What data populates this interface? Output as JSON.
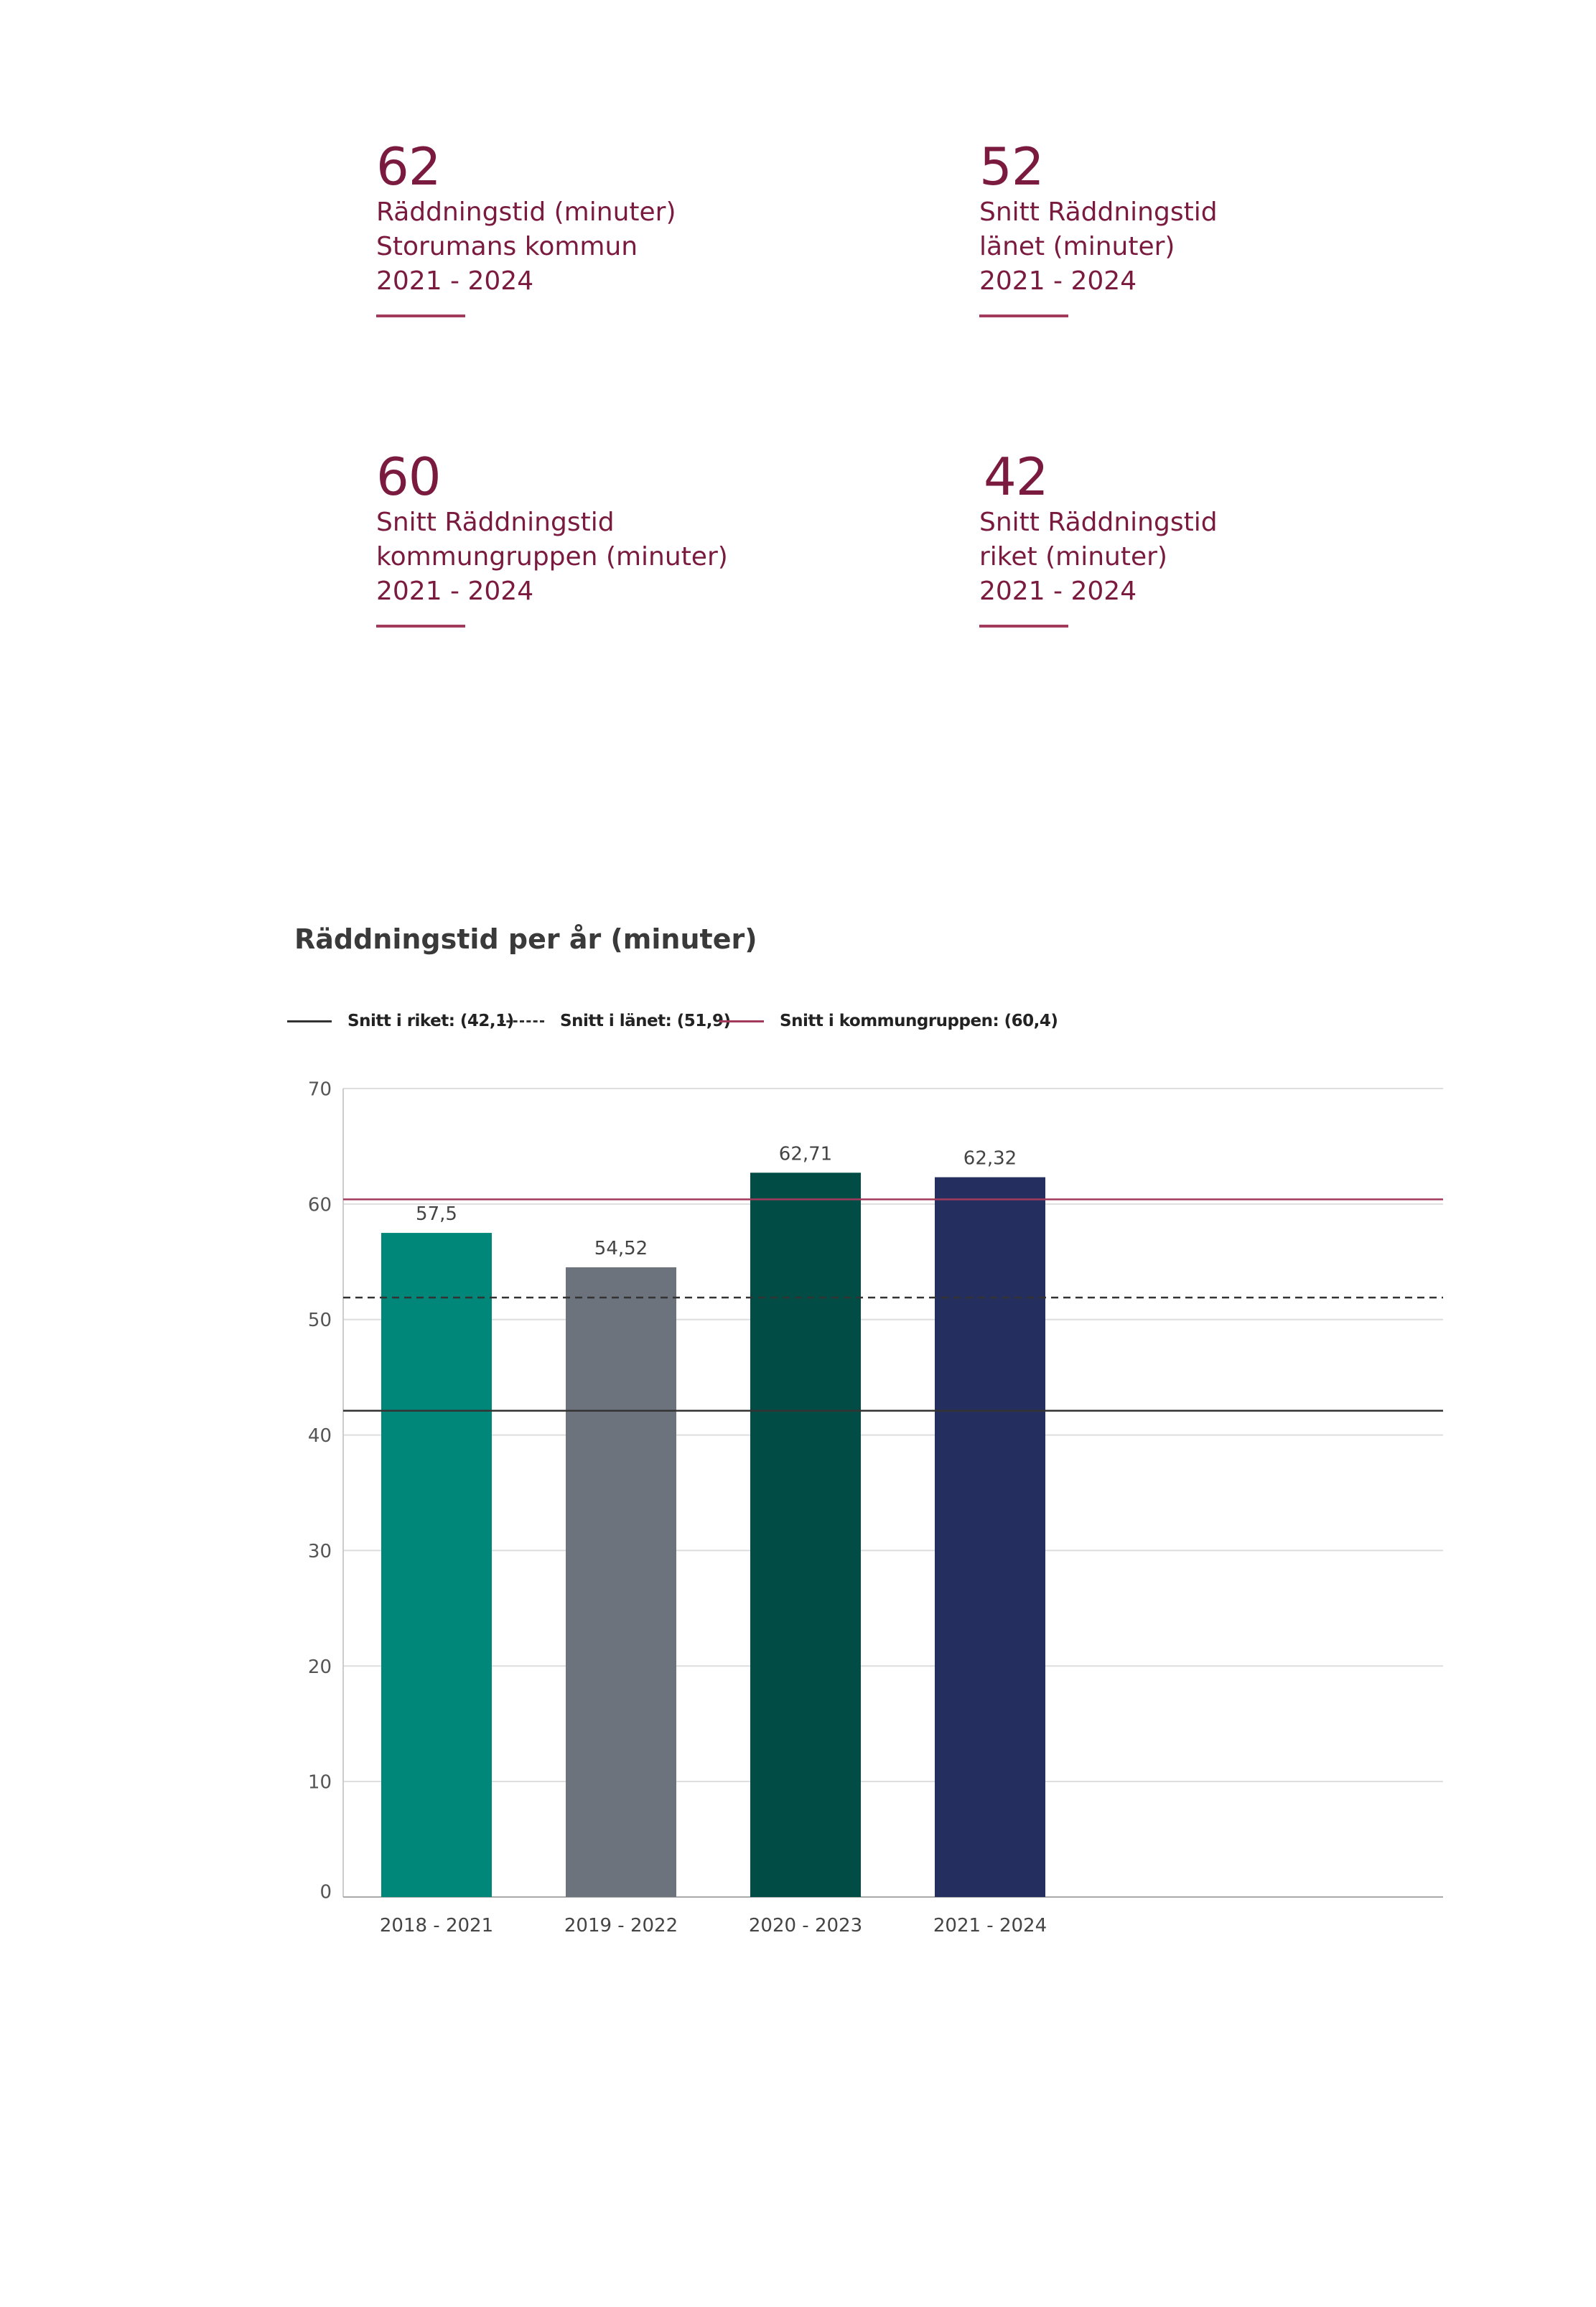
{
  "stats": [
    {
      "value": "62",
      "lines": [
        "Räddningstid (minuter)",
        "Storumans kommun",
        "2021 - 2024"
      ]
    },
    {
      "value": "52",
      "lines": [
        "Snitt Räddningstid",
        "länet (minuter)",
        "2021 - 2024"
      ]
    },
    {
      "value": "60",
      "lines": [
        "Snitt Räddningstid",
        "kommungruppen (minuter)",
        "2021 - 2024"
      ]
    },
    {
      "value": "42",
      "lines": [
        "Snitt Räddningstid",
        "riket (minuter)",
        "2021 - 2024"
      ]
    }
  ],
  "colors": {
    "accent": "#7b1a3f",
    "bars": [
      "#00877a",
      "#6d737c",
      "#014d45",
      "#252f5f"
    ],
    "line_riket": "#333333",
    "line_lanet": "#333333",
    "line_kommungruppen": "#a23a5c"
  },
  "chart_data": {
    "type": "bar",
    "title": "Räddningstid per år (minuter)",
    "xlabel": "",
    "ylabel": "",
    "categories": [
      "2018 - 2021",
      "2019 - 2022",
      "2020 - 2023",
      "2021 - 2024"
    ],
    "values": [
      57.5,
      54.52,
      62.71,
      62.32
    ],
    "value_labels": [
      "57,5",
      "54,52",
      "62,71",
      "62,32"
    ],
    "ylim": [
      0,
      70
    ],
    "yticks": [
      0,
      10,
      20,
      30,
      40,
      50,
      60,
      70
    ],
    "grid": true,
    "legend_position": "top-left",
    "reference_lines": [
      {
        "label": "Snitt i riket: (42,1)",
        "value": 42.1,
        "style": "solid"
      },
      {
        "label": "Snitt i länet: (51,9)",
        "value": 51.9,
        "style": "dashed"
      },
      {
        "label": "Snitt i kommungruppen: (60,4)",
        "value": 60.4,
        "style": "solid"
      }
    ]
  }
}
